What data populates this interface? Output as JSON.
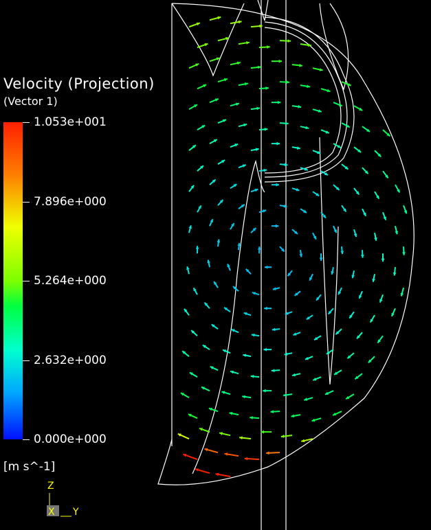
{
  "legend": {
    "title": "Velocity  (Projection)",
    "subtitle": "(Vector  1)",
    "ticks": [
      "1.053e+001",
      "7.896e+000",
      "5.264e+000",
      "2.632e+000",
      "0.000e+000"
    ],
    "units": "[m  s^-1]",
    "colors": [
      "#ff2000",
      "#ff7a00",
      "#f0ff00",
      "#7dff00",
      "#00ff40",
      "#00ffd0",
      "#00a8ff",
      "#0010ff"
    ]
  },
  "axes": {
    "z": "Z",
    "x": "X",
    "y": "Y"
  }
}
